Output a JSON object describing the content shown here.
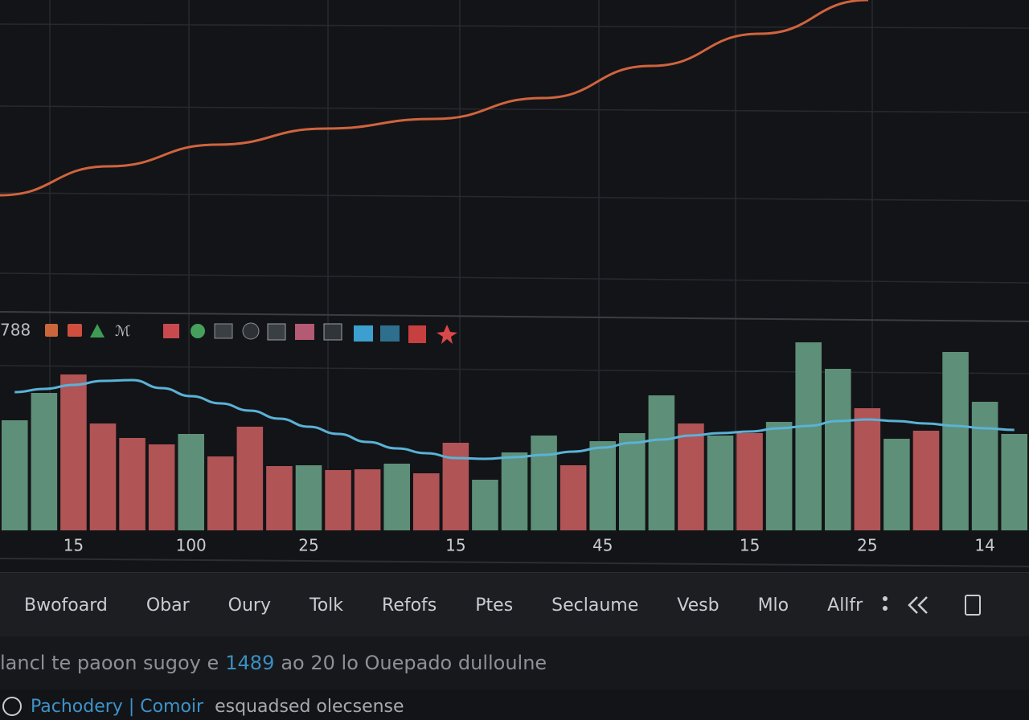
{
  "indicator_label": "788",
  "chart_data": [
    {
      "type": "line",
      "color": "#d0643e",
      "values": [
        147,
        183,
        210,
        230,
        242,
        268,
        308,
        348,
        390
      ]
    },
    {
      "type": "bar",
      "categories": [
        null,
        null,
        "15",
        null,
        null,
        null,
        "100",
        null,
        null,
        null,
        "25",
        null,
        null,
        null,
        null,
        "15",
        null,
        null,
        null,
        null,
        "45",
        null,
        null,
        null,
        null,
        "15",
        null,
        null,
        null,
        "25",
        null,
        null,
        null,
        "14",
        null
      ],
      "series": [
        {
          "type": "bar",
          "values": [
            137,
            171,
            194,
            133,
            115,
            107,
            120,
            92,
            129,
            80,
            81,
            75,
            76,
            83,
            71,
            109,
            63,
            97,
            118,
            81,
            111,
            121,
            168,
            133,
            118,
            121,
            135,
            234,
            201,
            152,
            114,
            124,
            222,
            160,
            120
          ],
          "colors": [
            "#5e8f78",
            "#5e8f78",
            "#b05456",
            "#b05456",
            "#b05456",
            "#b05456",
            "#5e8f78",
            "#b05456",
            "#b05456",
            "#b05456",
            "#5e8f78",
            "#b05456",
            "#b05456",
            "#5e8f78",
            "#b05456",
            "#b05456",
            "#5e8f78",
            "#5e8f78",
            "#5e8f78",
            "#b05456",
            "#5e8f78",
            "#5e8f78",
            "#5e8f78",
            "#b05456",
            "#5e8f78",
            "#b05456",
            "#5e8f78",
            "#5e8f78",
            "#5e8f78",
            "#b05456",
            "#5e8f78",
            "#b05456",
            "#5e8f78",
            "#5e8f78",
            "#5e8f78"
          ]
        },
        {
          "type": "line",
          "color": "#5ab2d6",
          "values": [
            172,
            176,
            181,
            186,
            187,
            177,
            167,
            158,
            149,
            139,
            129,
            120,
            110,
            102,
            96,
            90,
            89,
            91,
            94,
            98,
            103,
            109,
            113,
            118,
            121,
            123,
            127,
            130,
            136,
            138,
            136,
            133,
            130,
            127,
            125
          ]
        }
      ]
    }
  ],
  "toolbar": [
    "Bwofoard",
    "Obar",
    "Oury",
    "Tolk",
    "Refofs",
    "Ptes",
    "Seclaume",
    "Vesb",
    "Mlo",
    "Allfr"
  ],
  "status": {
    "before": "lancl te paoon sugoy e",
    "highlight": "1489",
    "after": "ao 20 lo Ouepado dulloulne"
  },
  "footer": {
    "link": "Pachodery | Comoir",
    "text": "esquadsed olecsense"
  }
}
